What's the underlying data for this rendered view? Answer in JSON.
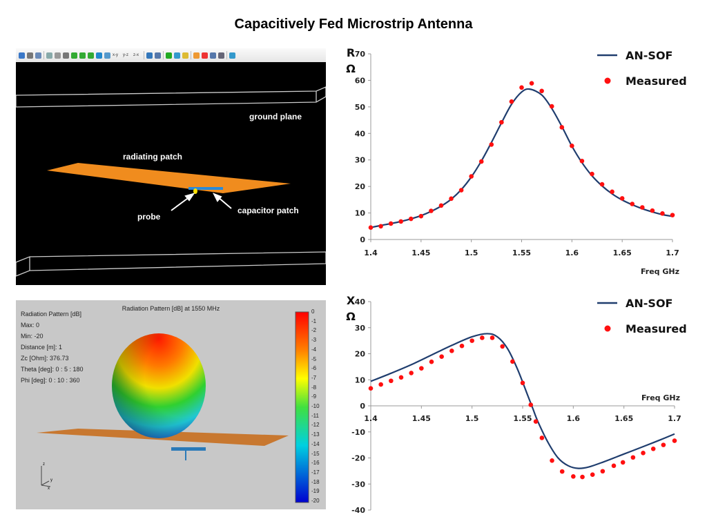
{
  "title": "Capacitively Fed Microstrip Antenna",
  "model_view": {
    "toolbar": [
      [
        "view-icon",
        "#3a78c8"
      ],
      [
        "comment-icon",
        "#777"
      ],
      [
        "report-icon",
        "#6a8ab8"
      ],
      "sep",
      [
        "select-icon",
        "#8aa"
      ],
      [
        "rectangle-icon",
        "#999"
      ],
      [
        "line-icon",
        "#777"
      ],
      [
        "rotate-x-icon",
        "#3a3"
      ],
      [
        "rotate-y-icon",
        "#3a3"
      ],
      [
        "rotate-z-icon",
        "#3a3"
      ],
      [
        "pan-icon",
        "#28c"
      ],
      [
        "zoom-icon",
        "#59c"
      ],
      {
        "t": "x-y"
      },
      {
        "t": "y-z"
      },
      {
        "t": "z-x"
      },
      "sep",
      [
        "fit-icon",
        "#37b"
      ],
      [
        "home-icon",
        "#57a"
      ],
      "sep",
      [
        "run-icon",
        "#2a2"
      ],
      [
        "run-currents-icon",
        "#39c"
      ],
      [
        "run-far-field-icon",
        "#db3"
      ],
      "sep",
      [
        "near-field-icon",
        "#e93"
      ],
      [
        "colormap-icon",
        "#e33"
      ],
      [
        "pattern-icon",
        "#57a"
      ],
      [
        "pattern-3d-icon",
        "#667"
      ],
      "sep",
      [
        "export-icon",
        "#39c"
      ]
    ],
    "labels": {
      "ground_plane": "ground plane",
      "radiating_patch": "radiating patch",
      "probe": "probe",
      "capacitor_patch": "capacitor patch"
    },
    "colors": {
      "patch": "#f08c1e",
      "capacitor": "#2a8ad8",
      "probe": "#ffe000"
    }
  },
  "pattern_view": {
    "title": "Radiation Pattern [dB] at 1550 MHz",
    "info": [
      "Radiation Pattern [dB]",
      "Max: 0",
      "Min: -20",
      "Distance [m]: 1",
      "Zc [Ohm]: 376.73",
      "Theta [deg]: 0 : 5 : 180",
      "Phi [deg]: 0 : 10 : 360"
    ],
    "colorbar_ticks": [
      "0",
      "-1",
      "-2",
      "-3",
      "-4",
      "-5",
      "-6",
      "-7",
      "-8",
      "-9",
      "-10",
      "-11",
      "-12",
      "-13",
      "-14",
      "-15",
      "-16",
      "-17",
      "-18",
      "-19",
      "-20"
    ],
    "axis_labels": {
      "z": "z",
      "y": "y",
      "x": "x"
    }
  },
  "chart_data": [
    {
      "type": "line",
      "ylabel": "R",
      "yunit": "Ω",
      "xlabel": "Freq  GHz",
      "xlim": [
        1.4,
        1.7
      ],
      "ylim": [
        0,
        70
      ],
      "xticks": [
        "1.4",
        "1.45",
        "1.5",
        "1.55",
        "1.6",
        "1.65",
        "1.7"
      ],
      "yticks": [
        "0",
        "10",
        "20",
        "30",
        "40",
        "50",
        "60",
        "70"
      ],
      "legend": "top-right",
      "series": [
        {
          "name": "AN-SOF",
          "style": "line",
          "color": "#1f3d6e",
          "x": [
            1.4,
            1.41,
            1.42,
            1.43,
            1.44,
            1.45,
            1.46,
            1.47,
            1.48,
            1.49,
            1.5,
            1.51,
            1.52,
            1.53,
            1.54,
            1.55,
            1.558,
            1.57,
            1.58,
            1.59,
            1.6,
            1.61,
            1.62,
            1.63,
            1.64,
            1.65,
            1.66,
            1.67,
            1.68,
            1.69,
            1.7
          ],
          "y": [
            4.5,
            5.3,
            6.0,
            6.8,
            7.8,
            9.0,
            10.6,
            12.6,
            15.2,
            18.8,
            23.6,
            29.6,
            36.6,
            44.0,
            51.0,
            55.6,
            56.7,
            54.5,
            49.4,
            42.6,
            35.2,
            29.0,
            24.0,
            20.2,
            17.2,
            14.9,
            13.1,
            11.6,
            10.4,
            9.4,
            8.7
          ]
        },
        {
          "name": "Measured",
          "style": "markers",
          "color": "#ff1010",
          "x": [
            1.4,
            1.41,
            1.42,
            1.43,
            1.44,
            1.45,
            1.46,
            1.47,
            1.48,
            1.49,
            1.5,
            1.51,
            1.52,
            1.53,
            1.54,
            1.55,
            1.56,
            1.57,
            1.58,
            1.59,
            1.6,
            1.61,
            1.62,
            1.63,
            1.64,
            1.65,
            1.66,
            1.67,
            1.68,
            1.69,
            1.7
          ],
          "y": [
            4.5,
            5.0,
            6.0,
            6.8,
            7.8,
            8.8,
            10.8,
            12.8,
            15.4,
            18.6,
            23.8,
            29.4,
            35.8,
            44.2,
            52.0,
            57.3,
            58.9,
            56.0,
            50.2,
            42.3,
            35.3,
            29.6,
            24.7,
            20.8,
            18.0,
            15.5,
            13.4,
            12.1,
            10.9,
            9.8,
            9.2
          ]
        }
      ]
    },
    {
      "type": "line",
      "ylabel": "X",
      "yunit": "Ω",
      "xlabel": "Freq  GHz",
      "xlim": [
        1.4,
        1.7
      ],
      "ylim": [
        -40,
        40
      ],
      "xticks": [
        "1.4",
        "1.45",
        "1.5",
        "1.55",
        "1.6",
        "1.65",
        "1.7"
      ],
      "yticks": [
        "-40",
        "-30",
        "-20",
        "-10",
        "0",
        "10",
        "20",
        "30",
        "40"
      ],
      "legend": "top-right",
      "series": [
        {
          "name": "AN-SOF",
          "style": "line",
          "color": "#1f3d6e",
          "x": [
            1.4,
            1.42,
            1.44,
            1.46,
            1.48,
            1.5,
            1.515,
            1.525,
            1.535,
            1.545,
            1.555,
            1.56,
            1.565,
            1.575,
            1.585,
            1.595,
            1.605,
            1.615,
            1.63,
            1.65,
            1.67,
            1.685,
            1.7
          ],
          "y": [
            9.4,
            12.5,
            15.8,
            19.5,
            23.2,
            26.5,
            27.7,
            26.5,
            22.0,
            14.0,
            4.0,
            -1.0,
            -6.0,
            -14.0,
            -20.0,
            -23.0,
            -24.0,
            -23.5,
            -21.5,
            -18.5,
            -15.5,
            -13.2,
            -10.8
          ]
        },
        {
          "name": "Measured",
          "style": "markers",
          "color": "#ff1010",
          "x": [
            1.4,
            1.41,
            1.42,
            1.43,
            1.44,
            1.45,
            1.46,
            1.47,
            1.48,
            1.49,
            1.5,
            1.51,
            1.52,
            1.53,
            1.54,
            1.55,
            1.558,
            1.563,
            1.569,
            1.579,
            1.589,
            1.6,
            1.609,
            1.619,
            1.629,
            1.64,
            1.649,
            1.659,
            1.669,
            1.679,
            1.689,
            1.7
          ],
          "y": [
            6.7,
            8.2,
            9.6,
            10.9,
            12.6,
            14.4,
            16.9,
            18.9,
            21.1,
            23.0,
            25.0,
            26.1,
            26.1,
            22.8,
            17.0,
            8.8,
            0.4,
            -6.0,
            -12.3,
            -21.0,
            -25.2,
            -27.1,
            -27.3,
            -26.4,
            -25.1,
            -23.0,
            -21.7,
            -19.8,
            -18.1,
            -16.5,
            -15.0,
            -13.4
          ]
        }
      ]
    }
  ]
}
